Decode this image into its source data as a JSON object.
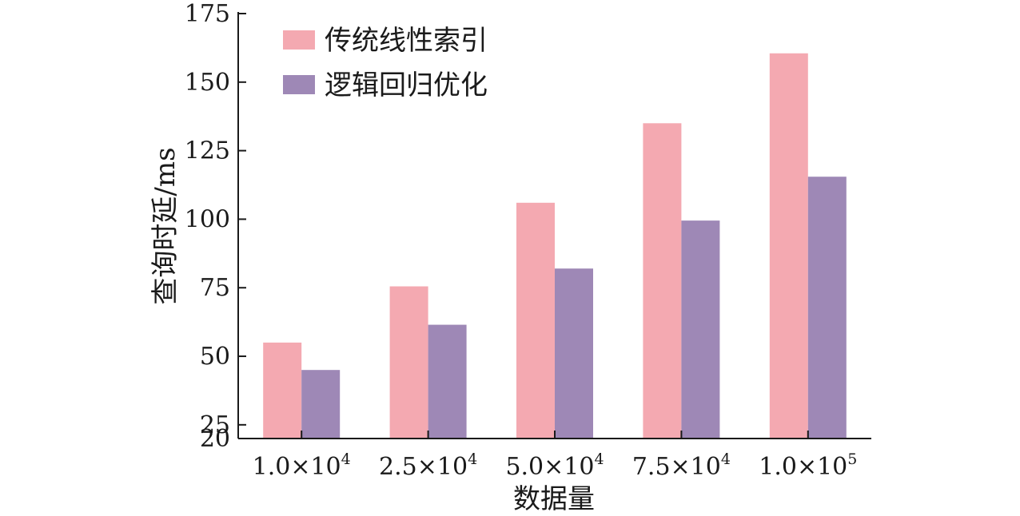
{
  "chart_data": {
    "type": "bar",
    "categories": [
      {
        "base": "1.0×10",
        "exp": "4"
      },
      {
        "base": "2.5×10",
        "exp": "4"
      },
      {
        "base": "5.0×10",
        "exp": "4"
      },
      {
        "base": "7.5×10",
        "exp": "4"
      },
      {
        "base": "1.0×10",
        "exp": "5"
      }
    ],
    "series": [
      {
        "name": "传统线性索引",
        "color": "#f4a9b1",
        "values": [
          55,
          75.5,
          106,
          135,
          160.5
        ]
      },
      {
        "name": "逻辑回归优化",
        "color": "#9e88b6",
        "values": [
          45,
          61.5,
          82,
          99.5,
          115.5
        ]
      }
    ],
    "title": "",
    "xlabel": "数据量",
    "ylabel": "查询时延/ms",
    "ylim": [
      20,
      175
    ],
    "yticks": [
      20,
      25,
      50,
      75,
      100,
      125,
      150,
      175
    ],
    "grid": false,
    "legend": "top-left"
  }
}
